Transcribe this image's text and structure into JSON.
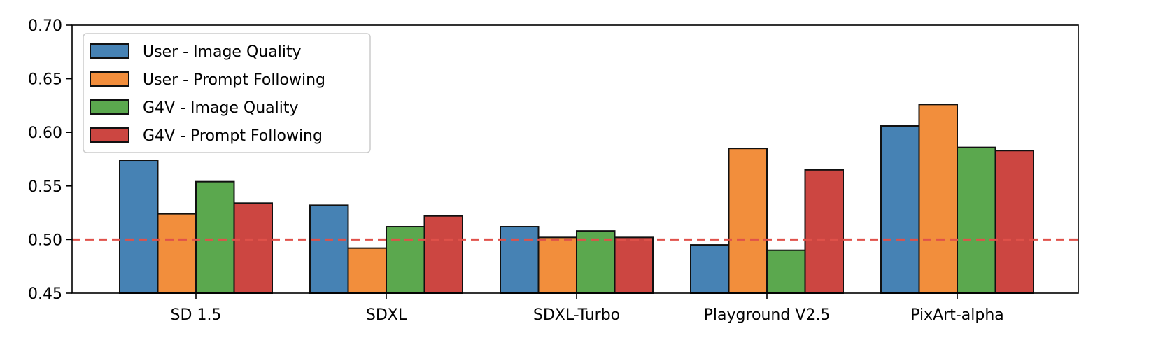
{
  "chart_data": {
    "type": "bar",
    "title": "",
    "xlabel": "",
    "ylabel": "",
    "categories": [
      "SD 1.5",
      "SDXL",
      "SDXL-Turbo",
      "Playground V2.5",
      "PixArt-alpha"
    ],
    "series": [
      {
        "name": "User - Image Quality",
        "color": "#4682b4",
        "values": [
          0.574,
          0.532,
          0.512,
          0.495,
          0.606
        ]
      },
      {
        "name": "User - Prompt Following",
        "color": "#f28e3c",
        "values": [
          0.524,
          0.492,
          0.502,
          0.585,
          0.626
        ]
      },
      {
        "name": "G4V - Image Quality",
        "color": "#5ba84e",
        "values": [
          0.554,
          0.512,
          0.508,
          0.49,
          0.586
        ]
      },
      {
        "name": "G4V - Prompt Following",
        "color": "#cc4641",
        "values": [
          0.534,
          0.522,
          0.502,
          0.565,
          0.583
        ]
      }
    ],
    "ylim": [
      0.45,
      0.7
    ],
    "yticks": [
      "0.45",
      "0.50",
      "0.55",
      "0.60",
      "0.65",
      "0.70"
    ],
    "reference_line": {
      "value": 0.5,
      "color": "#e0514a",
      "style": "dashed"
    },
    "legend_position": "top-left",
    "grid": false
  }
}
